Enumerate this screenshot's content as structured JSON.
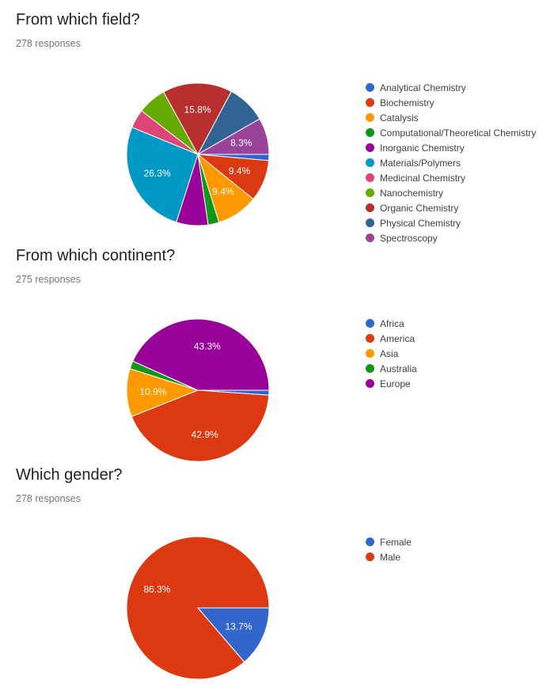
{
  "chart_data": [
    {
      "type": "pie",
      "title": "From which field?",
      "subtitle": "278 responses",
      "start": "right",
      "direction": "clockwise",
      "legend_position": "right",
      "slices": [
        {
          "label": "Analytical Chemistry",
          "value": 1.4,
          "color": "#3366cc",
          "data_label": ""
        },
        {
          "label": "Biochemistry",
          "value": 9.4,
          "color": "#dc3912",
          "data_label": "9.4%"
        },
        {
          "label": "Catalysis",
          "value": 9.4,
          "color": "#ff9900",
          "data_label": "9.4%"
        },
        {
          "label": "Computational/Theoretical Chemistry",
          "value": 2.5,
          "color": "#109618",
          "data_label": ""
        },
        {
          "label": "Inorganic Chemistry",
          "value": 7.2,
          "color": "#990099",
          "data_label": ""
        },
        {
          "label": "Materials/Polymers",
          "value": 26.3,
          "color": "#0099c6",
          "data_label": "26.3%"
        },
        {
          "label": "Medicinal Chemistry",
          "value": 4.3,
          "color": "#dd4477",
          "data_label": ""
        },
        {
          "label": "Nanochemistry",
          "value": 6.5,
          "color": "#66aa00",
          "data_label": ""
        },
        {
          "label": "Organic Chemistry",
          "value": 15.8,
          "color": "#b82e2e",
          "data_label": "15.8%"
        },
        {
          "label": "Physical Chemistry",
          "value": 8.9,
          "color": "#316395",
          "data_label": ""
        },
        {
          "label": "Spectroscopy",
          "value": 8.3,
          "color": "#994499",
          "data_label": "8.3%"
        }
      ]
    },
    {
      "type": "pie",
      "title": "From which continent?",
      "subtitle": "275 responses",
      "start": "right",
      "direction": "clockwise",
      "legend_position": "right",
      "slices": [
        {
          "label": "Africa",
          "value": 1.1,
          "color": "#3366cc",
          "data_label": ""
        },
        {
          "label": "America",
          "value": 42.9,
          "color": "#dc3912",
          "data_label": "42.9%"
        },
        {
          "label": "Asia",
          "value": 10.9,
          "color": "#ff9900",
          "data_label": "10.9%"
        },
        {
          "label": "Australia",
          "value": 1.8,
          "color": "#109618",
          "data_label": ""
        },
        {
          "label": "Europe",
          "value": 43.3,
          "color": "#990099",
          "data_label": "43.3%"
        }
      ]
    },
    {
      "type": "pie",
      "title": "Which gender?",
      "subtitle": "278 responses",
      "start": "right",
      "direction": "clockwise",
      "legend_position": "right",
      "slices": [
        {
          "label": "Female",
          "value": 13.7,
          "color": "#3366cc",
          "data_label": "13.7%"
        },
        {
          "label": "Male",
          "value": 86.3,
          "color": "#dc3912",
          "data_label": "86.3%"
        }
      ]
    }
  ]
}
